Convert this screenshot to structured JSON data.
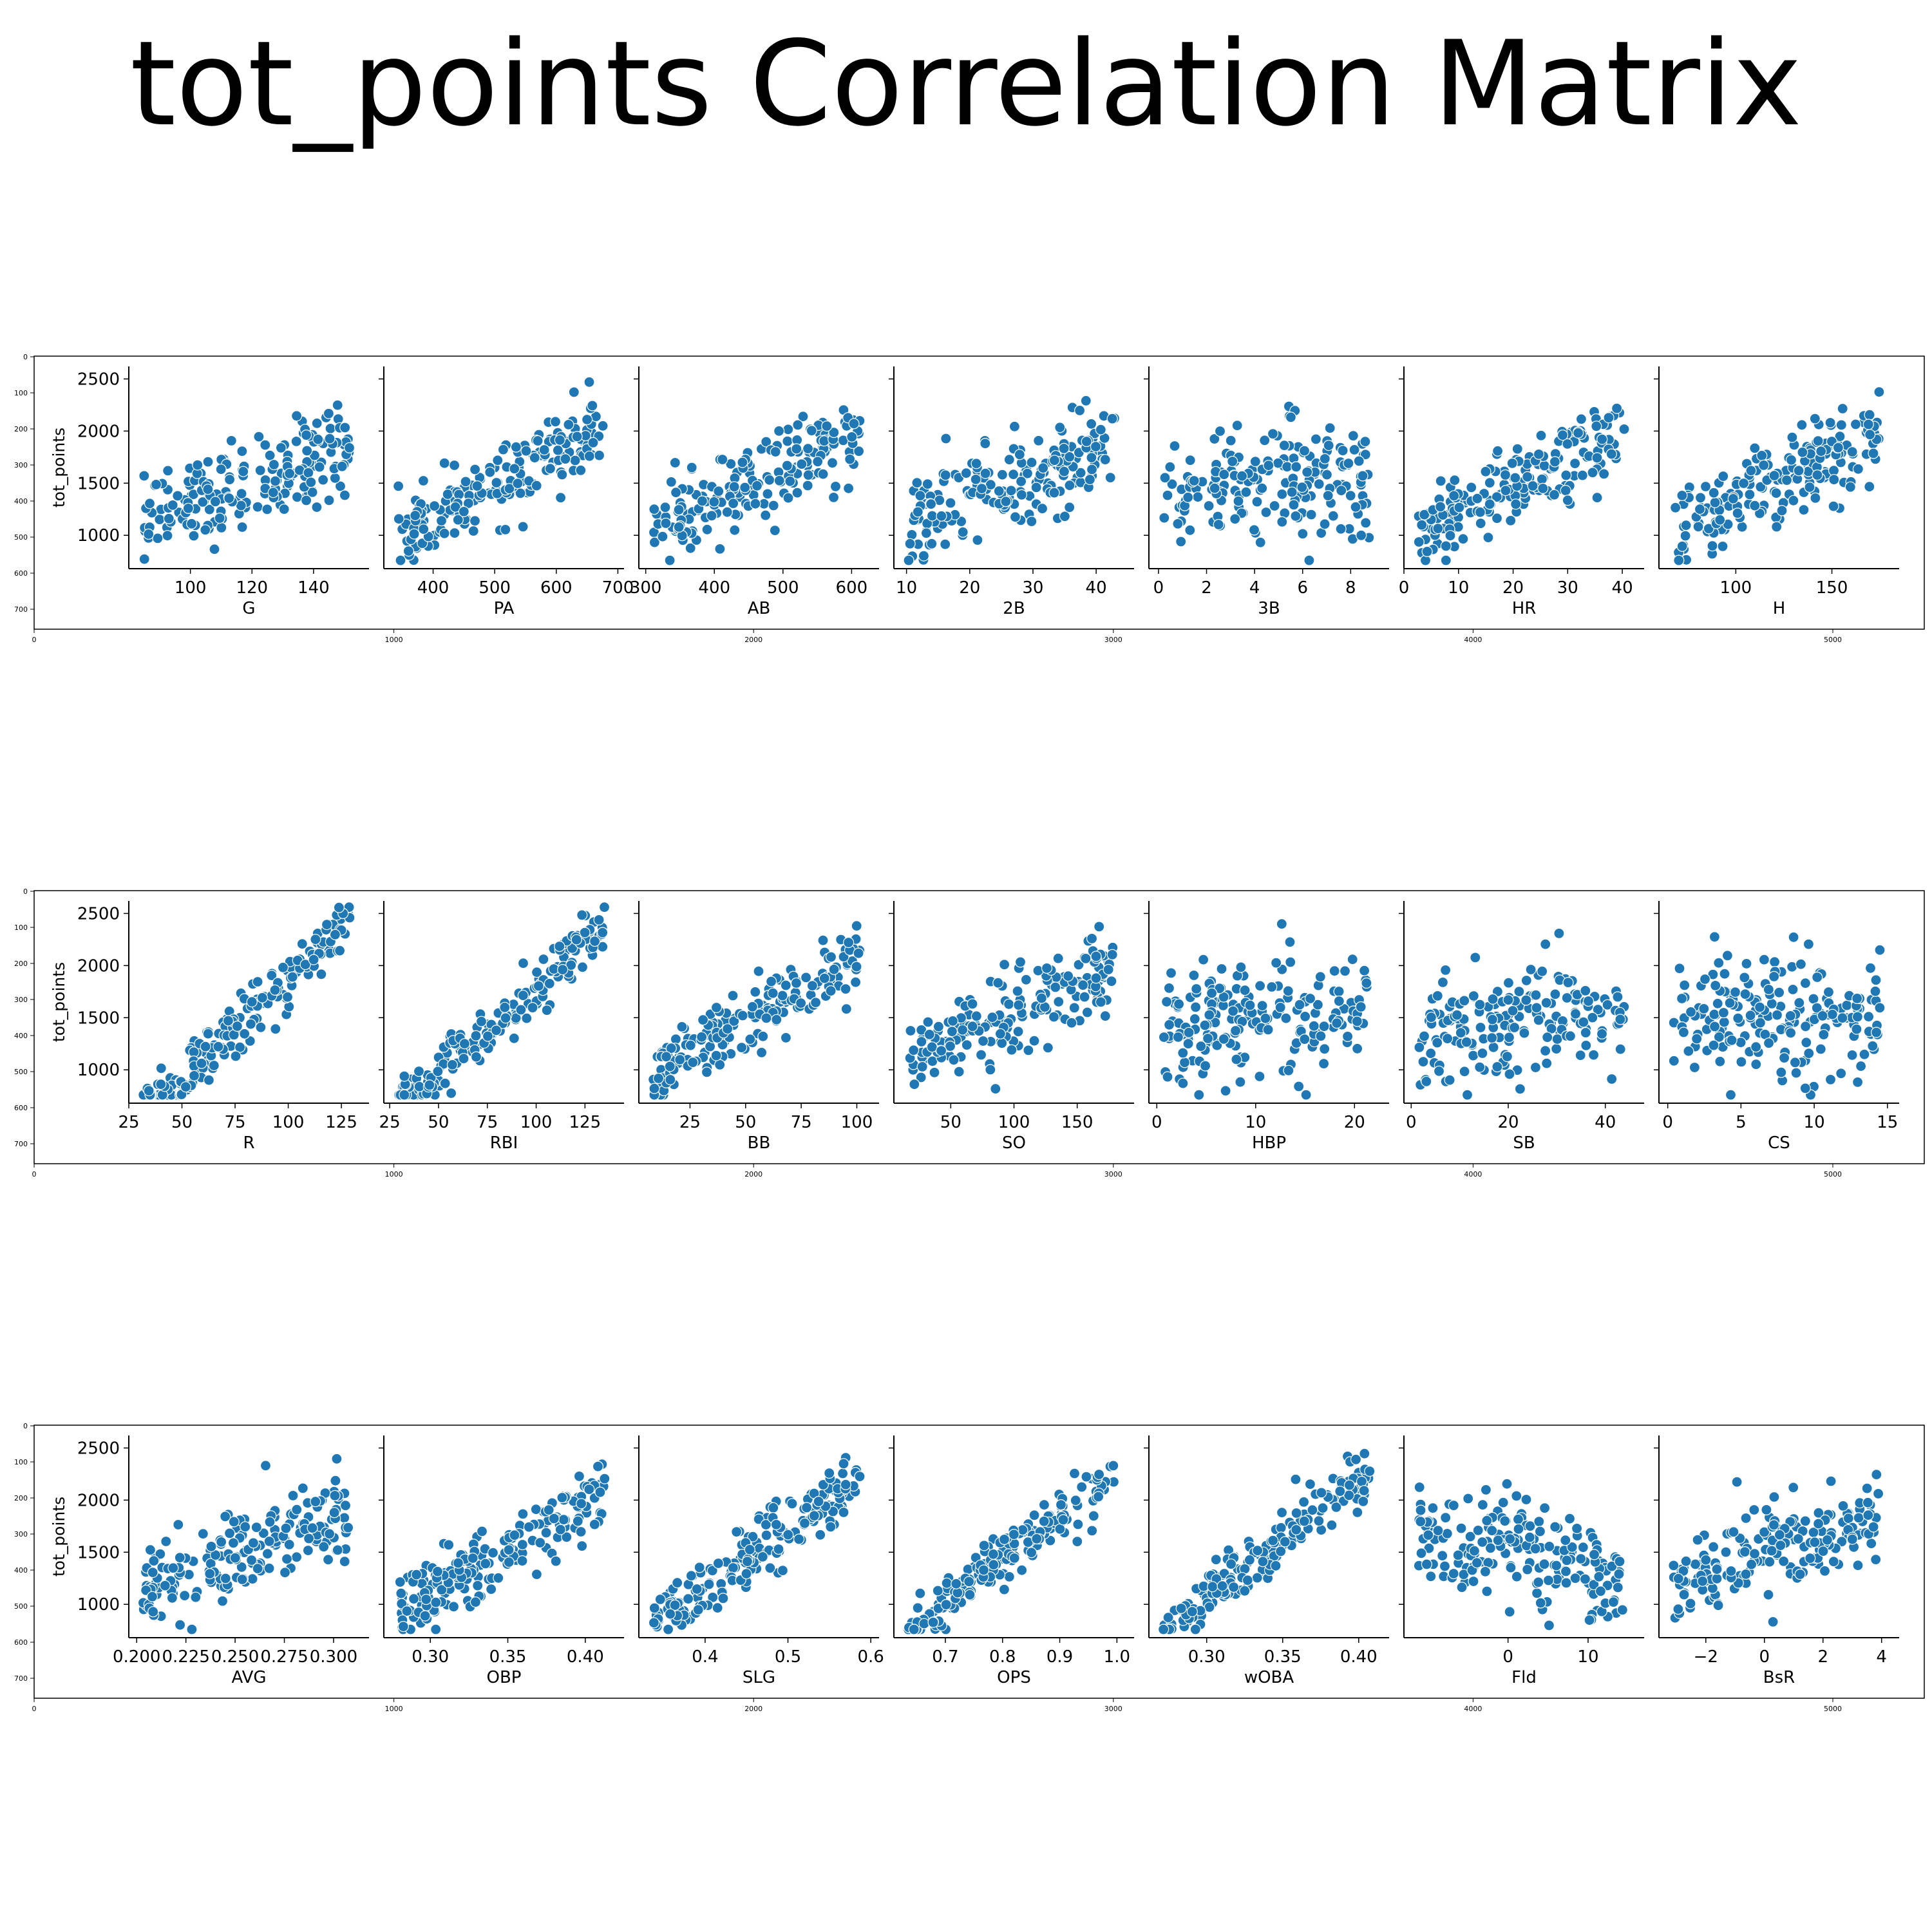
{
  "title": "tot_points Correlation Matrix",
  "colors": {
    "marker": "#1f77b4",
    "marker_edge": "#ffffff",
    "axis": "#000000"
  },
  "chart_data": {
    "type": "scatter",
    "ylabel": "tot_points",
    "shared_y": {
      "ticks": [
        1000,
        1500,
        2000,
        2500
      ],
      "range": [
        680,
        2620
      ]
    },
    "outer_frame_y_ticks": [
      0,
      100,
      200,
      300,
      400,
      500,
      600,
      700
    ],
    "outer_frame_x_ticks": [
      0,
      1000,
      2000,
      3000,
      4000,
      5000
    ],
    "legend": "none",
    "grid": false,
    "rows": [
      {
        "panels": [
          {
            "xlabel": "G",
            "xticks": [
              100,
              120,
              140
            ],
            "xticklabels": [
              "100",
              "120",
              "140"
            ],
            "xrange": [
              80,
              158
            ]
          },
          {
            "xlabel": "PA",
            "xticks": [
              400,
              500,
              600,
              700
            ],
            "xticklabels": [
              "400",
              "500",
              "600",
              "700"
            ],
            "xrange": [
              320,
              710
            ]
          },
          {
            "xlabel": "AB",
            "xticks": [
              300,
              400,
              500,
              600
            ],
            "xticklabels": [
              "300",
              "400",
              "500",
              "600"
            ],
            "xrange": [
              290,
              640
            ]
          },
          {
            "xlabel": "2B",
            "xticks": [
              10,
              20,
              30,
              40
            ],
            "xticklabels": [
              "10",
              "20",
              "30",
              "40"
            ],
            "xrange": [
              8,
              46
            ]
          },
          {
            "xlabel": "3B",
            "xticks": [
              0,
              2,
              4,
              6,
              8
            ],
            "xticklabels": [
              "0",
              "2",
              "4",
              "6",
              "8"
            ],
            "xrange": [
              -0.4,
              9.6
            ]
          },
          {
            "xlabel": "HR",
            "xticks": [
              0,
              10,
              20,
              30,
              40
            ],
            "xticklabels": [
              "0",
              "10",
              "20",
              "30",
              "40"
            ],
            "xrange": [
              0,
              44
            ]
          },
          {
            "xlabel": "H",
            "xticks": [
              100,
              150
            ],
            "xticklabels": [
              "100",
              "150"
            ],
            "xrange": [
              60,
              185
            ]
          }
        ]
      },
      {
        "panels": [
          {
            "xlabel": "R",
            "xticks": [
              25,
              50,
              75,
              100,
              125
            ],
            "xticklabels": [
              "25",
              "50",
              "75",
              "100",
              "125"
            ],
            "xrange": [
              25,
              138
            ]
          },
          {
            "xlabel": "RBI",
            "xticks": [
              25,
              50,
              75,
              100,
              125
            ],
            "xticklabels": [
              "25",
              "50",
              "75",
              "100",
              "125"
            ],
            "xrange": [
              22,
              145
            ]
          },
          {
            "xlabel": "BB",
            "xticks": [
              25,
              50,
              75,
              100
            ],
            "xticklabels": [
              "25",
              "50",
              "75",
              "100"
            ],
            "xrange": [
              2,
              110
            ]
          },
          {
            "xlabel": "SO",
            "xticks": [
              50,
              100,
              150
            ],
            "xticklabels": [
              "50",
              "100",
              "150"
            ],
            "xrange": [
              5,
              195
            ]
          },
          {
            "xlabel": "HBP",
            "xticks": [
              0,
              10,
              20
            ],
            "xticklabels": [
              "0",
              "10",
              "20"
            ],
            "xrange": [
              -0.8,
              23.5
            ]
          },
          {
            "xlabel": "SB",
            "xticks": [
              0,
              20,
              40
            ],
            "xticklabels": [
              "0",
              "20",
              "40"
            ],
            "xrange": [
              -1.5,
              48
            ]
          },
          {
            "xlabel": "CS",
            "xticks": [
              0,
              5,
              10,
              15
            ],
            "xticklabels": [
              "0",
              "5",
              "10",
              "15"
            ],
            "xrange": [
              -0.6,
              15.8
            ]
          }
        ]
      },
      {
        "panels": [
          {
            "xlabel": "AVG",
            "xticks": [
              0.2,
              0.225,
              0.25,
              0.275,
              0.3
            ],
            "xticklabels": [
              "0.200",
              "0.225",
              "0.250",
              "0.275",
              "0.300"
            ],
            "xrange": [
              0.196,
              0.318
            ]
          },
          {
            "xlabel": "OBP",
            "xticks": [
              0.3,
              0.35,
              0.4
            ],
            "xticklabels": [
              "0.30",
              "0.35",
              "0.40"
            ],
            "xrange": [
              0.27,
              0.425
            ]
          },
          {
            "xlabel": "SLG",
            "xticks": [
              0.4,
              0.5,
              0.6
            ],
            "xticklabels": [
              "0.4",
              "0.5",
              "0.6"
            ],
            "xrange": [
              0.32,
              0.61
            ]
          },
          {
            "xlabel": "OPS",
            "xticks": [
              0.7,
              0.8,
              0.9,
              1.0
            ],
            "xticklabels": [
              "0.7",
              "0.8",
              "0.9",
              "1.0"
            ],
            "xrange": [
              0.61,
              1.03
            ]
          },
          {
            "xlabel": "wOBA",
            "xticks": [
              0.3,
              0.35,
              0.4
            ],
            "xticklabels": [
              "0.30",
              "0.35",
              "0.40"
            ],
            "xrange": [
              0.262,
              0.42
            ]
          },
          {
            "xlabel": "Fld",
            "xticks": [
              0,
              10
            ],
            "xticklabels": [
              "0",
              "10"
            ],
            "xrange": [
              -13,
              17
            ]
          },
          {
            "xlabel": "BsR",
            "xticks": [
              -2,
              0,
              2,
              4
            ],
            "xticklabels": [
              "−2",
              "0",
              "2",
              "4"
            ],
            "xrange": [
              -3.6,
              4.6
            ]
          }
        ]
      }
    ]
  }
}
